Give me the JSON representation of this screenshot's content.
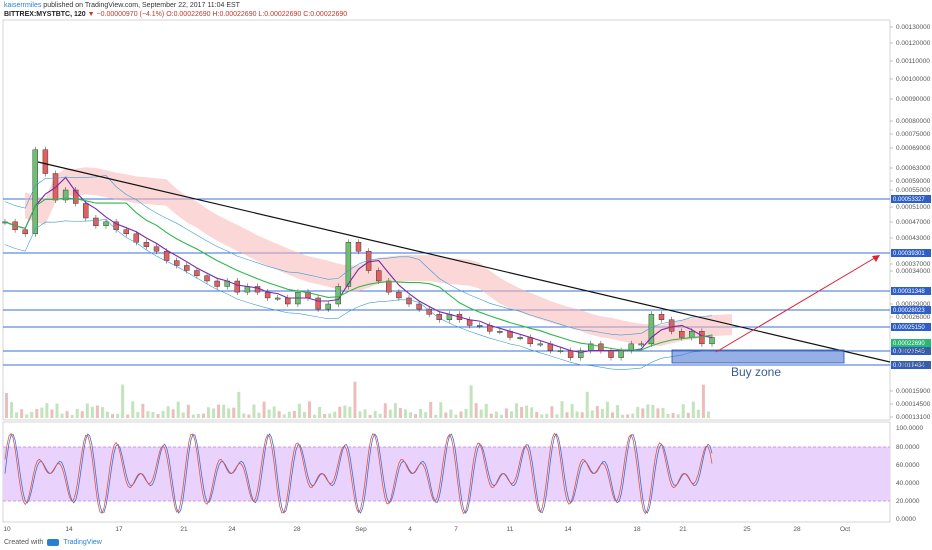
{
  "header": {
    "user": "kaiserrmiles",
    "published": "published on TradingView.com, September 22, 2017 11:04 EST",
    "symbol": "BITTREX:MYSTBTC, 120",
    "change": "▼ −0.00000970 (−4.1%)",
    "ohlc": "O:0.00022690 H:0.00022690 L:0.00022690 C:0.00022690"
  },
  "footer": {
    "created": "Created with",
    "brand": "TradingView"
  },
  "annotation": {
    "buy_zone": "Buy zone"
  },
  "chart_data": {
    "type": "line",
    "title": "",
    "price_axis": {
      "tick_labels": [
        "0.00130000",
        "0.00120000",
        "0.00110000",
        "0.00100000",
        "0.00090000",
        "0.00080000",
        "0.00075000",
        "0.00069000",
        "0.00063000",
        "0.00059000",
        "0.00055000",
        "0.00051000",
        "0.00047000",
        "0.00043000",
        "0.00037000",
        "0.00034000",
        "0.00029000",
        "0.00026000",
        "0.00022000",
        "0.00019000",
        "0.00015900",
        "0.00014500",
        "0.00013100"
      ],
      "scale": "log"
    },
    "horizontal_levels": [
      {
        "label": "0.00053327",
        "value": 0.00053327
      },
      {
        "label": "0.00039301",
        "value": 0.00039301
      },
      {
        "label": "0.00031348",
        "value": 0.00031348
      },
      {
        "label": "0.00028023",
        "value": 0.00028023
      },
      {
        "label": "0.00025150",
        "value": 0.0002515
      },
      {
        "label": "0.00021545",
        "value": 0.00021545
      },
      {
        "label": "0.00019484",
        "value": 0.00019484
      }
    ],
    "price_tag": {
      "label": "0.00022690",
      "value": 0.0002269
    },
    "x_tick_labels": [
      "10",
      "14",
      "17",
      "21",
      "24",
      "28",
      "Sep",
      "4",
      "7",
      "11",
      "14",
      "18",
      "21",
      "25",
      "28",
      "Oct"
    ],
    "price_series": [
      0.00046,
      0.00044,
      0.00043,
      0.00068,
      0.0006,
      0.00052,
      0.00055,
      0.00051,
      0.00047,
      0.00045,
      0.00046,
      0.00044,
      0.00043,
      0.00041,
      0.0004,
      0.00039,
      0.00037,
      0.00036,
      0.00035,
      0.00034,
      0.00033,
      0.00032,
      0.00033,
      0.00031,
      0.00032,
      0.00031,
      0.0003,
      0.0003,
      0.00029,
      0.00031,
      0.0003,
      0.00028,
      0.00029,
      0.00032,
      0.00041,
      0.00039,
      0.00035,
      0.00033,
      0.00031,
      0.0003,
      0.00029,
      0.00028,
      0.00027,
      0.00026,
      0.00027,
      0.00026,
      0.00025,
      0.00025,
      0.00024,
      0.00024,
      0.00023,
      0.00023,
      0.00022,
      0.00022,
      0.00021,
      0.00021,
      0.0002,
      0.00021,
      0.00022,
      0.00021,
      0.0002,
      0.00021,
      0.00022,
      0.00022,
      0.00027,
      0.00026,
      0.00024,
      0.00023,
      0.00024,
      0.00022,
      0.00023
    ],
    "oscillator": {
      "tick_labels": [
        "100.0000",
        "80.0000",
        "60.0000",
        "40.0000",
        "20.0000",
        "0.0000"
      ],
      "upper_band": 80,
      "lower_band": 20
    }
  }
}
